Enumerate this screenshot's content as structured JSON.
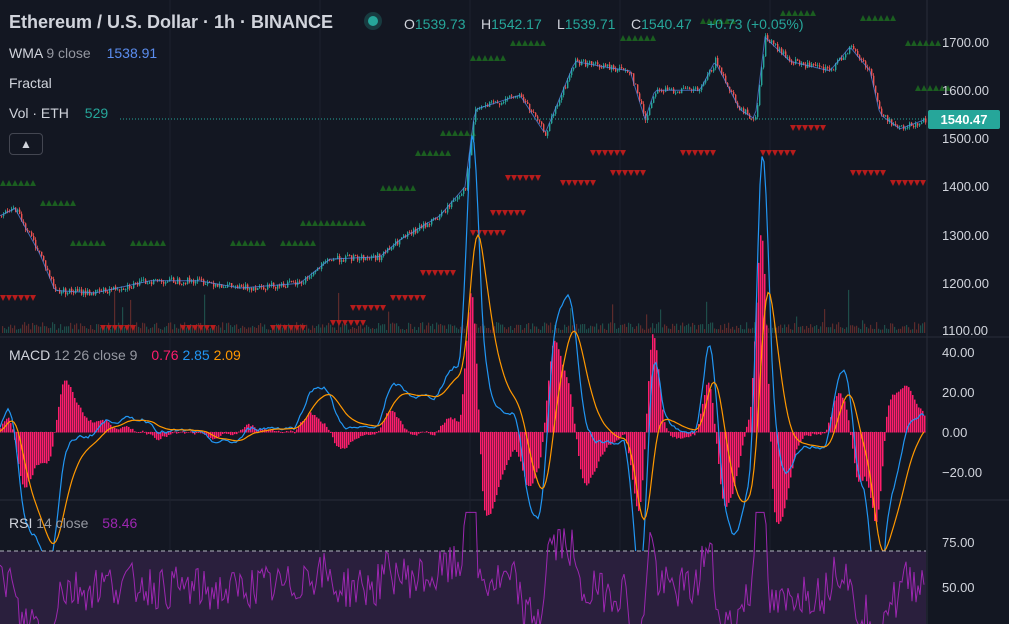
{
  "header": {
    "title": "Ethereum / U.S. Dollar · 1h · BINANCE",
    "ohlc": [
      {
        "key": "O",
        "value": "1539.73"
      },
      {
        "key": "H",
        "value": "1542.17"
      },
      {
        "key": "L",
        "value": "1539.71"
      },
      {
        "key": "C",
        "value": "1540.47"
      }
    ],
    "change": "+0.73 (+0.05%)"
  },
  "indicators": {
    "wma": {
      "name": "WMA",
      "params": "9 close",
      "value": "1538.91"
    },
    "fractal": {
      "name": "Fractal"
    },
    "volume": {
      "name": "Vol · ETH",
      "value": "529"
    },
    "macd": {
      "name": "MACD",
      "params": "12 26 close 9",
      "hist": "0.76",
      "macd": "2.85",
      "signal": "2.09"
    },
    "rsi": {
      "name": "RSI",
      "params": "14 close",
      "value": "58.46"
    }
  },
  "price_axis": {
    "current_price": "1540.47",
    "main_ticks": [
      "1700.00",
      "1600.00",
      "1500.00",
      "1400.00",
      "1300.00",
      "1200.00",
      "1100.00"
    ],
    "macd_ticks": [
      "40.00",
      "20.00",
      "0.00",
      "−20.00"
    ],
    "rsi_ticks": [
      "75.00",
      "50.00"
    ]
  },
  "colors": {
    "background": "#131722",
    "up": "#26a69a",
    "down": "#ef5350",
    "fractal_up": "#1b5e20",
    "fractal_down": "#b71c1c",
    "macd_line": "#2196f3",
    "signal_line": "#ff9800",
    "histogram": "#ff1d6c",
    "rsi_line": "#9c27b0",
    "rsi_band": "#2a1f3d"
  },
  "icons": {
    "collapse": "chevron-up-icon",
    "live": "live-dot-icon"
  }
}
